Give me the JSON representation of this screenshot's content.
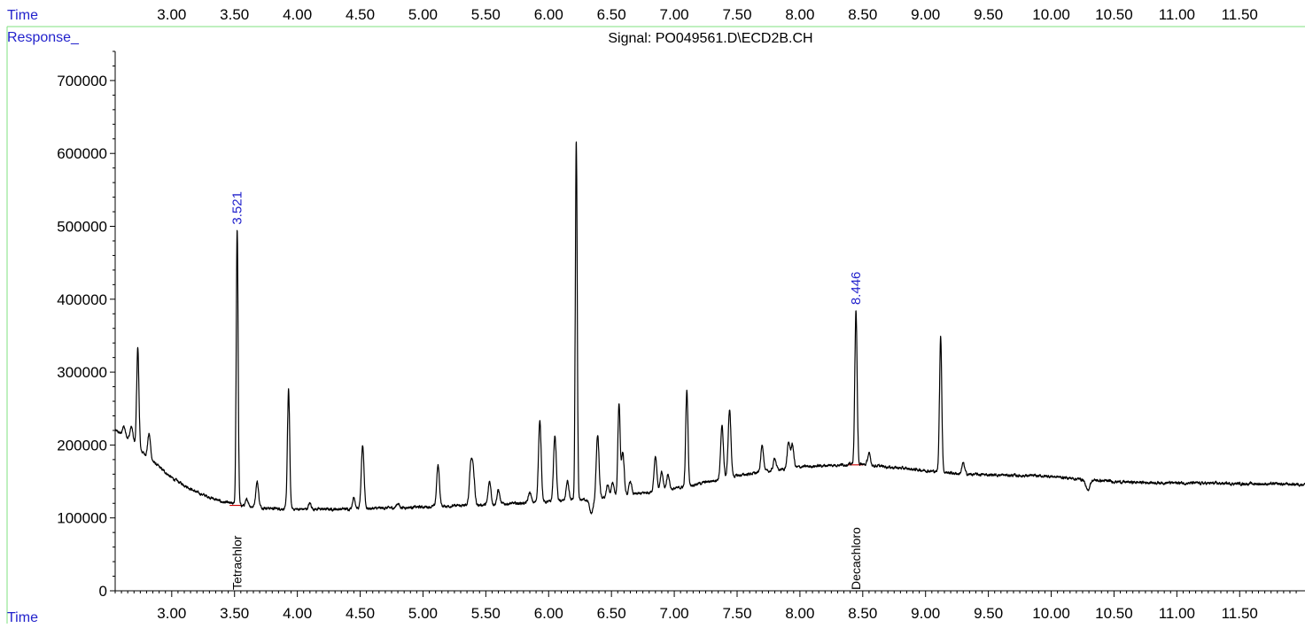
{
  "header": {
    "time_label": "Time",
    "response_label": "Response_",
    "signal_label": "Signal: PO049561.D\\ECD2B.CH"
  },
  "footer": {
    "time_label": "Time"
  },
  "colors": {
    "frame": "#7fe07f",
    "trace": "#000000",
    "peak_label": "#2222cc",
    "baseline_marker": "#cc0000",
    "text": "#000000"
  },
  "chart_data": {
    "type": "line",
    "title": "Signal: PO049561.D\\ECD2B.CH",
    "xlabel": "Time",
    "ylabel": "Response_",
    "xlim": [
      2.55,
      12.02
    ],
    "ylim": [
      0,
      740000
    ],
    "x_ticks": [
      3.0,
      3.5,
      4.0,
      4.5,
      5.0,
      5.5,
      6.0,
      6.5,
      7.0,
      7.5,
      8.0,
      8.5,
      9.0,
      9.5,
      10.0,
      10.5,
      11.0,
      11.5
    ],
    "x_tick_labels": [
      "3.00",
      "3.50",
      "4.00",
      "4.50",
      "5.00",
      "5.50",
      "6.00",
      "6.50",
      "7.00",
      "7.50",
      "8.00",
      "8.50",
      "9.00",
      "9.50",
      "10.00",
      "10.50",
      "11.00",
      "11.50"
    ],
    "y_ticks": [
      0,
      100000,
      200000,
      300000,
      400000,
      500000,
      600000,
      700000
    ],
    "y_tick_labels": [
      "0",
      "100000",
      "200000",
      "300000",
      "400000",
      "500000",
      "600000",
      "700000"
    ],
    "grid": false,
    "baseline": [
      [
        2.55,
        220000
      ],
      [
        2.65,
        210000
      ],
      [
        2.8,
        185000
      ],
      [
        3.0,
        155000
      ],
      [
        3.2,
        135000
      ],
      [
        3.4,
        122000
      ],
      [
        3.6,
        116000
      ],
      [
        3.8,
        113000
      ],
      [
        4.0,
        112000
      ],
      [
        4.3,
        112000
      ],
      [
        4.6,
        113000
      ],
      [
        5.0,
        115000
      ],
      [
        5.5,
        118000
      ],
      [
        6.0,
        122000
      ],
      [
        6.5,
        128000
      ],
      [
        7.0,
        140000
      ],
      [
        7.5,
        158000
      ],
      [
        8.0,
        170000
      ],
      [
        8.45,
        174000
      ],
      [
        8.7,
        170000
      ],
      [
        9.0,
        165000
      ],
      [
        9.3,
        160000
      ],
      [
        10.0,
        157000
      ],
      [
        10.3,
        152000
      ],
      [
        10.6,
        149000
      ],
      [
        11.0,
        148000
      ],
      [
        11.5,
        147000
      ],
      [
        12.02,
        146000
      ]
    ],
    "peaks": [
      {
        "rt": 2.62,
        "height": 225000
      },
      {
        "rt": 2.68,
        "height": 225000
      },
      {
        "rt": 2.73,
        "height": 332000
      },
      {
        "rt": 2.82,
        "height": 215000
      },
      {
        "rt": 3.521,
        "height": 495000
      },
      {
        "rt": 3.6,
        "height": 125000
      },
      {
        "rt": 3.68,
        "height": 150000
      },
      {
        "rt": 3.93,
        "height": 275000
      },
      {
        "rt": 4.1,
        "height": 120000
      },
      {
        "rt": 4.45,
        "height": 128000
      },
      {
        "rt": 4.52,
        "height": 198000
      },
      {
        "rt": 4.8,
        "height": 120000
      },
      {
        "rt": 5.12,
        "height": 172000
      },
      {
        "rt": 5.38,
        "height": 170000
      },
      {
        "rt": 5.4,
        "height": 162000
      },
      {
        "rt": 5.53,
        "height": 150000
      },
      {
        "rt": 5.6,
        "height": 138000
      },
      {
        "rt": 5.85,
        "height": 135000
      },
      {
        "rt": 5.93,
        "height": 232000
      },
      {
        "rt": 6.05,
        "height": 213000
      },
      {
        "rt": 6.15,
        "height": 150000
      },
      {
        "rt": 6.22,
        "height": 615000
      },
      {
        "rt": 6.39,
        "height": 213000
      },
      {
        "rt": 6.47,
        "height": 145000
      },
      {
        "rt": 6.51,
        "height": 148000
      },
      {
        "rt": 6.56,
        "height": 256000
      },
      {
        "rt": 6.59,
        "height": 190000
      },
      {
        "rt": 6.65,
        "height": 150000
      },
      {
        "rt": 6.85,
        "height": 185000
      },
      {
        "rt": 6.9,
        "height": 162000
      },
      {
        "rt": 6.95,
        "height": 160000
      },
      {
        "rt": 7.1,
        "height": 275000
      },
      {
        "rt": 7.38,
        "height": 225000
      },
      {
        "rt": 7.44,
        "height": 248000
      },
      {
        "rt": 7.7,
        "height": 200000
      },
      {
        "rt": 7.8,
        "height": 182000
      },
      {
        "rt": 7.91,
        "height": 203000
      },
      {
        "rt": 7.94,
        "height": 200000
      },
      {
        "rt": 8.446,
        "height": 385000
      },
      {
        "rt": 8.55,
        "height": 188000
      },
      {
        "rt": 9.12,
        "height": 348000
      },
      {
        "rt": 9.3,
        "height": 175000
      }
    ],
    "dips": [
      {
        "rt": 6.34,
        "depth": 20000
      },
      {
        "rt": 10.29,
        "depth": 15000
      }
    ],
    "peak_labels": [
      {
        "rt": 3.521,
        "height": 495000,
        "text": "3.521"
      },
      {
        "rt": 8.446,
        "height": 385000,
        "text": "8.446"
      }
    ],
    "compound_labels": [
      {
        "rt": 3.521,
        "text": "Tetrachlor"
      },
      {
        "rt": 8.446,
        "text": "Decachloro"
      }
    ]
  }
}
